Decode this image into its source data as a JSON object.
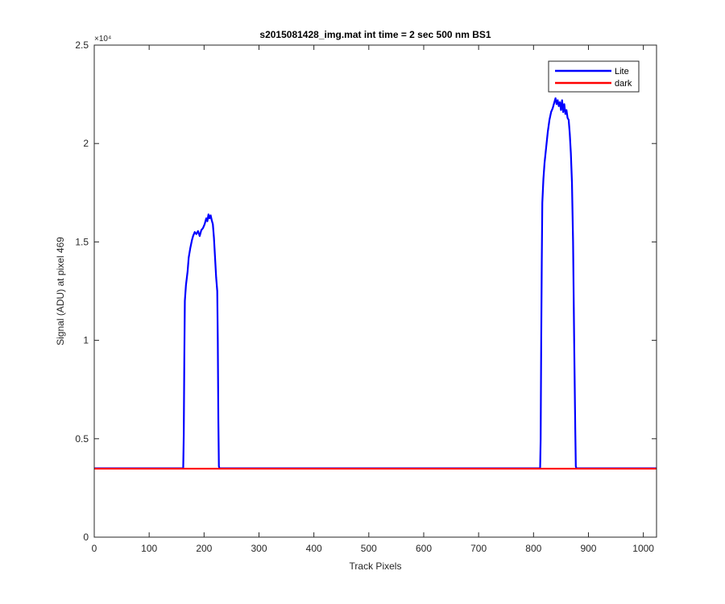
{
  "chart_data": {
    "type": "line",
    "title": "s2015081428_img.mat int time = 2 sec  500 nm BS1",
    "xlabel": "Track Pixels",
    "ylabel": "Signal (ADU) at pixel 469",
    "y_multiplier_label": "×10⁴",
    "xlim": [
      0,
      1024
    ],
    "ylim": [
      0,
      25000
    ],
    "x_ticks": [
      0,
      100,
      200,
      300,
      400,
      500,
      600,
      700,
      800,
      900,
      1000
    ],
    "x_tick_labels": [
      "0",
      "100",
      "200",
      "300",
      "400",
      "500",
      "600",
      "700",
      "800",
      "900",
      "1000"
    ],
    "y_ticks": [
      0,
      5000,
      10000,
      15000,
      20000,
      25000
    ],
    "y_tick_labels": [
      "0",
      "0.5",
      "1",
      "1.5",
      "2",
      "2.5"
    ],
    "grid": false,
    "legend_position": "top-right",
    "series": [
      {
        "name": "Lite",
        "color": "#0000ff",
        "points": [
          [
            0,
            3500
          ],
          [
            162,
            3500
          ],
          [
            163,
            5200
          ],
          [
            164,
            9000
          ],
          [
            165,
            12000
          ],
          [
            167,
            12800
          ],
          [
            170,
            13500
          ],
          [
            172,
            14200
          ],
          [
            175,
            14700
          ],
          [
            178,
            15100
          ],
          [
            180,
            15300
          ],
          [
            183,
            15500
          ],
          [
            186,
            15400
          ],
          [
            189,
            15550
          ],
          [
            192,
            15300
          ],
          [
            195,
            15600
          ],
          [
            198,
            15700
          ],
          [
            201,
            15900
          ],
          [
            204,
            16200
          ],
          [
            206,
            16050
          ],
          [
            208,
            16400
          ],
          [
            210,
            16200
          ],
          [
            212,
            16350
          ],
          [
            214,
            16100
          ],
          [
            216,
            15900
          ],
          [
            218,
            15200
          ],
          [
            220,
            14200
          ],
          [
            222,
            13200
          ],
          [
            224,
            12500
          ],
          [
            225,
            10000
          ],
          [
            226,
            6000
          ],
          [
            227,
            3600
          ],
          [
            228,
            3500
          ],
          [
            812,
            3500
          ],
          [
            813,
            5000
          ],
          [
            814,
            10000
          ],
          [
            815,
            14000
          ],
          [
            816,
            17000
          ],
          [
            818,
            18200
          ],
          [
            820,
            19000
          ],
          [
            823,
            19800
          ],
          [
            826,
            20600
          ],
          [
            829,
            21200
          ],
          [
            832,
            21600
          ],
          [
            835,
            21800
          ],
          [
            838,
            22100
          ],
          [
            840,
            22300
          ],
          [
            842,
            22000
          ],
          [
            844,
            22200
          ],
          [
            846,
            21900
          ],
          [
            848,
            22100
          ],
          [
            850,
            21700
          ],
          [
            852,
            22200
          ],
          [
            854,
            21600
          ],
          [
            856,
            22000
          ],
          [
            858,
            21500
          ],
          [
            860,
            21700
          ],
          [
            862,
            21300
          ],
          [
            864,
            21200
          ],
          [
            866,
            20500
          ],
          [
            868,
            19500
          ],
          [
            870,
            18000
          ],
          [
            872,
            15000
          ],
          [
            874,
            10000
          ],
          [
            876,
            5500
          ],
          [
            877,
            3600
          ],
          [
            878,
            3500
          ],
          [
            1024,
            3500
          ]
        ]
      },
      {
        "name": "dark",
        "color": "#ff0000",
        "points": [
          [
            0,
            3480
          ],
          [
            1024,
            3480
          ]
        ]
      }
    ]
  }
}
